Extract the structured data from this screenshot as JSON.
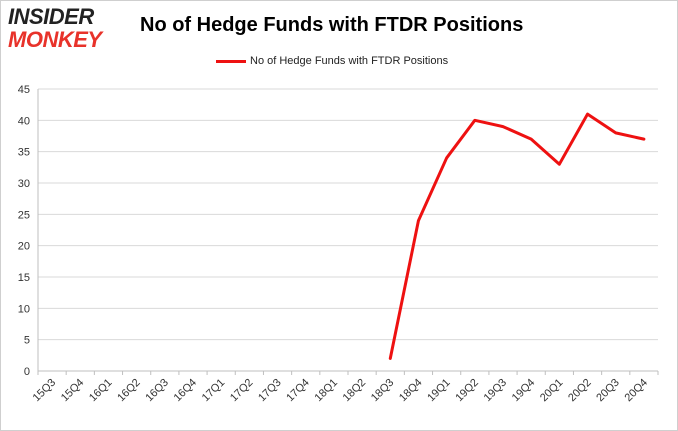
{
  "brand": {
    "line1": "INSIDER",
    "line2": "MONKEY"
  },
  "chart_data": {
    "type": "line",
    "title": "No of Hedge Funds with FTDR Positions",
    "xlabel": "",
    "ylabel": "",
    "categories": [
      "15Q3",
      "15Q4",
      "16Q1",
      "16Q2",
      "16Q3",
      "16Q4",
      "17Q1",
      "17Q2",
      "17Q3",
      "17Q4",
      "18Q1",
      "18Q2",
      "18Q3",
      "18Q4",
      "19Q1",
      "19Q2",
      "19Q3",
      "19Q4",
      "20Q1",
      "20Q2",
      "20Q3",
      "20Q4"
    ],
    "series": [
      {
        "name": "No of Hedge Funds with FTDR Positions",
        "color": "#ee1111",
        "values": [
          null,
          null,
          null,
          null,
          null,
          null,
          null,
          null,
          null,
          null,
          null,
          null,
          2,
          24,
          34,
          40,
          39,
          37,
          33,
          41,
          38,
          37
        ]
      }
    ],
    "ylim": [
      0,
      45
    ],
    "yticks": [
      0,
      5,
      10,
      15,
      20,
      25,
      30,
      35,
      40,
      45
    ],
    "grid": true,
    "legend_position": "top"
  }
}
